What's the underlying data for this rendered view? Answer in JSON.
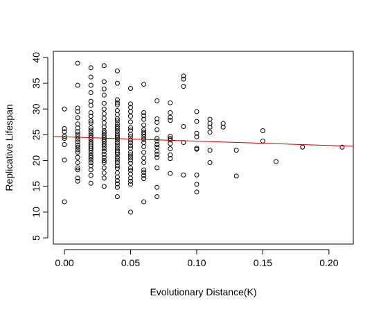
{
  "chart_data": {
    "type": "scatter",
    "title": "",
    "xlabel": "Evolutionary Distance(K)",
    "ylabel": "Replicative Lifespan",
    "xlim": [
      -0.0084,
      0.2184
    ],
    "ylim": [
      3.8,
      41.2
    ],
    "x_ticks": [
      0.0,
      0.05,
      0.1,
      0.15,
      0.2
    ],
    "x_tick_labels": [
      "0.00",
      "0.05",
      "0.10",
      "0.15",
      "0.20"
    ],
    "y_ticks": [
      5,
      10,
      15,
      20,
      25,
      30,
      35,
      40
    ],
    "y_tick_labels": [
      "5",
      "10",
      "15",
      "20",
      "25",
      "30",
      "35",
      "40"
    ],
    "grid": false,
    "legend": "none",
    "point_color": "#000000",
    "trend_color": "#c00000",
    "trend_line": {
      "intercept": 24.6,
      "slope": -8.3
    },
    "x": [
      0.0,
      0.0,
      0.0,
      0.0,
      0.0,
      0.0,
      0.0,
      0.0,
      0.01,
      0.01,
      0.01,
      0.01,
      0.01,
      0.01,
      0.01,
      0.01,
      0.01,
      0.01,
      0.01,
      0.01,
      0.01,
      0.01,
      0.01,
      0.01,
      0.01,
      0.01,
      0.01,
      0.01,
      0.01,
      0.01,
      0.02,
      0.02,
      0.02,
      0.02,
      0.02,
      0.02,
      0.02,
      0.02,
      0.02,
      0.02,
      0.02,
      0.02,
      0.02,
      0.02,
      0.02,
      0.02,
      0.02,
      0.02,
      0.02,
      0.02,
      0.02,
      0.02,
      0.02,
      0.02,
      0.02,
      0.02,
      0.02,
      0.02,
      0.02,
      0.02,
      0.03,
      0.03,
      0.03,
      0.03,
      0.03,
      0.03,
      0.03,
      0.03,
      0.03,
      0.03,
      0.03,
      0.03,
      0.03,
      0.03,
      0.03,
      0.03,
      0.03,
      0.03,
      0.03,
      0.03,
      0.03,
      0.03,
      0.03,
      0.03,
      0.03,
      0.03,
      0.03,
      0.03,
      0.04,
      0.04,
      0.04,
      0.04,
      0.04,
      0.04,
      0.04,
      0.04,
      0.04,
      0.04,
      0.04,
      0.04,
      0.04,
      0.04,
      0.04,
      0.04,
      0.04,
      0.04,
      0.04,
      0.04,
      0.04,
      0.04,
      0.04,
      0.04,
      0.04,
      0.04,
      0.04,
      0.04,
      0.04,
      0.04,
      0.04,
      0.04,
      0.04,
      0.04,
      0.05,
      0.05,
      0.05,
      0.05,
      0.05,
      0.05,
      0.05,
      0.05,
      0.05,
      0.05,
      0.05,
      0.05,
      0.05,
      0.05,
      0.05,
      0.05,
      0.05,
      0.05,
      0.05,
      0.05,
      0.05,
      0.05,
      0.05,
      0.05,
      0.05,
      0.05,
      0.06,
      0.06,
      0.06,
      0.06,
      0.06,
      0.06,
      0.06,
      0.06,
      0.06,
      0.06,
      0.06,
      0.06,
      0.06,
      0.06,
      0.06,
      0.06,
      0.06,
      0.06,
      0.06,
      0.06,
      0.07,
      0.07,
      0.07,
      0.07,
      0.07,
      0.07,
      0.07,
      0.07,
      0.07,
      0.07,
      0.07,
      0.07,
      0.07,
      0.07,
      0.08,
      0.08,
      0.08,
      0.08,
      0.08,
      0.08,
      0.08,
      0.08,
      0.08,
      0.08,
      0.08,
      0.08,
      0.09,
      0.09,
      0.09,
      0.09,
      0.09,
      0.09,
      0.1,
      0.1,
      0.1,
      0.1,
      0.1,
      0.1,
      0.1,
      0.1,
      0.1,
      0.11,
      0.11,
      0.11,
      0.11,
      0.11,
      0.11,
      0.12,
      0.12,
      0.13,
      0.13,
      0.15,
      0.15,
      0.16,
      0.18,
      0.21
    ],
    "y": [
      30.0,
      26.2,
      25.6,
      24.7,
      24.3,
      23.1,
      20.1,
      12.0,
      38.9,
      34.6,
      30.2,
      29.5,
      28.3,
      27.1,
      26.3,
      25.6,
      25.1,
      24.6,
      24.1,
      23.6,
      23.0,
      22.6,
      22.1,
      21.6,
      20.6,
      19.6,
      18.6,
      18.2,
      16.6,
      16.0,
      38.0,
      36.2,
      34.6,
      33.2,
      31.5,
      30.7,
      29.3,
      28.6,
      27.7,
      27.3,
      26.4,
      25.9,
      25.4,
      24.9,
      24.5,
      24.1,
      23.6,
      23.2,
      22.8,
      22.4,
      22.0,
      21.5,
      21.0,
      20.6,
      20.1,
      19.6,
      19.0,
      18.2,
      17.1,
      15.6,
      38.4,
      35.3,
      33.9,
      32.7,
      31.1,
      30.0,
      29.1,
      28.2,
      27.3,
      26.5,
      25.8,
      25.4,
      24.9,
      24.5,
      24.1,
      23.7,
      23.2,
      22.8,
      22.3,
      21.8,
      21.2,
      20.6,
      20.0,
      19.6,
      18.6,
      17.6,
      16.6,
      15.0,
      37.4,
      35.0,
      31.8,
      31.2,
      30.8,
      29.7,
      28.9,
      28.1,
      27.7,
      27.1,
      26.6,
      26.2,
      25.7,
      25.2,
      24.8,
      24.4,
      24.0,
      23.5,
      23.0,
      22.5,
      22.0,
      21.6,
      21.2,
      20.6,
      20.1,
      19.6,
      19.0,
      18.5,
      17.6,
      16.8,
      16.1,
      15.5,
      14.8,
      13.0,
      34.0,
      31.0,
      30.3,
      29.5,
      28.6,
      27.5,
      26.4,
      25.9,
      25.1,
      24.6,
      24.0,
      23.5,
      22.9,
      22.4,
      21.6,
      21.1,
      20.6,
      20.1,
      19.5,
      18.6,
      18.1,
      17.4,
      16.6,
      16.0,
      15.4,
      10.0,
      34.8,
      29.3,
      28.7,
      28.0,
      26.9,
      26.0,
      25.5,
      25.1,
      24.6,
      24.1,
      23.5,
      22.7,
      21.6,
      20.5,
      19.6,
      18.2,
      17.7,
      17.1,
      16.5,
      12.0,
      31.6,
      28.1,
      27.4,
      26.0,
      24.3,
      23.8,
      23.1,
      22.6,
      21.8,
      21.2,
      20.6,
      18.6,
      14.8,
      13.0,
      31.2,
      29.3,
      28.4,
      27.8,
      24.7,
      24.3,
      24.0,
      23.3,
      22.3,
      21.1,
      20.4,
      17.5,
      36.4,
      35.8,
      34.4,
      26.6,
      23.5,
      17.2,
      29.5,
      27.6,
      25.3,
      24.6,
      22.4,
      22.2,
      17.2,
      15.4,
      13.9,
      28.0,
      27.2,
      26.5,
      25.5,
      22.0,
      19.6,
      27.2,
      26.5,
      22.0,
      17.0,
      25.8,
      23.8,
      19.8,
      22.6,
      22.6
    ]
  }
}
